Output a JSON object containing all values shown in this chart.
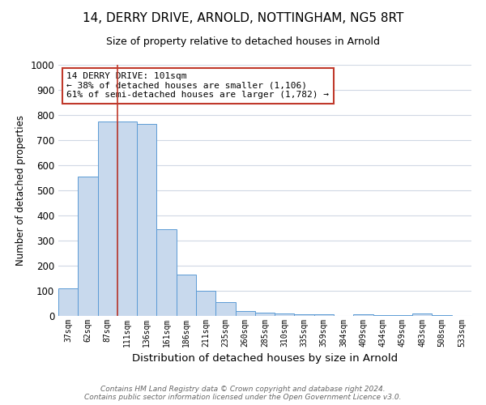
{
  "title": "14, DERRY DRIVE, ARNOLD, NOTTINGHAM, NG5 8RT",
  "subtitle": "Size of property relative to detached houses in Arnold",
  "xlabel": "Distribution of detached houses by size in Arnold",
  "ylabel": "Number of detached properties",
  "categories": [
    "37sqm",
    "62sqm",
    "87sqm",
    "111sqm",
    "136sqm",
    "161sqm",
    "186sqm",
    "211sqm",
    "235sqm",
    "260sqm",
    "285sqm",
    "310sqm",
    "335sqm",
    "359sqm",
    "384sqm",
    "409sqm",
    "434sqm",
    "459sqm",
    "483sqm",
    "508sqm",
    "533sqm"
  ],
  "values": [
    110,
    555,
    775,
    775,
    765,
    345,
    165,
    100,
    55,
    20,
    13,
    10,
    8,
    5,
    0,
    8,
    3,
    3,
    10,
    3,
    0
  ],
  "bar_color": "#c8d9ed",
  "bar_edge_color": "#5b9bd5",
  "grid_color": "#d0d8e4",
  "background_color": "#ffffff",
  "property_line_color": "#c0392b",
  "property_line_x": 2.5,
  "annotation_text": "14 DERRY DRIVE: 101sqm\n← 38% of detached houses are smaller (1,106)\n61% of semi-detached houses are larger (1,782) →",
  "annotation_box_color": "#ffffff",
  "annotation_box_edge": "#c0392b",
  "ylim": [
    0,
    1000
  ],
  "yticks": [
    0,
    100,
    200,
    300,
    400,
    500,
    600,
    700,
    800,
    900,
    1000
  ],
  "footer_line1": "Contains HM Land Registry data © Crown copyright and database right 2024.",
  "footer_line2": "Contains public sector information licensed under the Open Government Licence v3.0."
}
